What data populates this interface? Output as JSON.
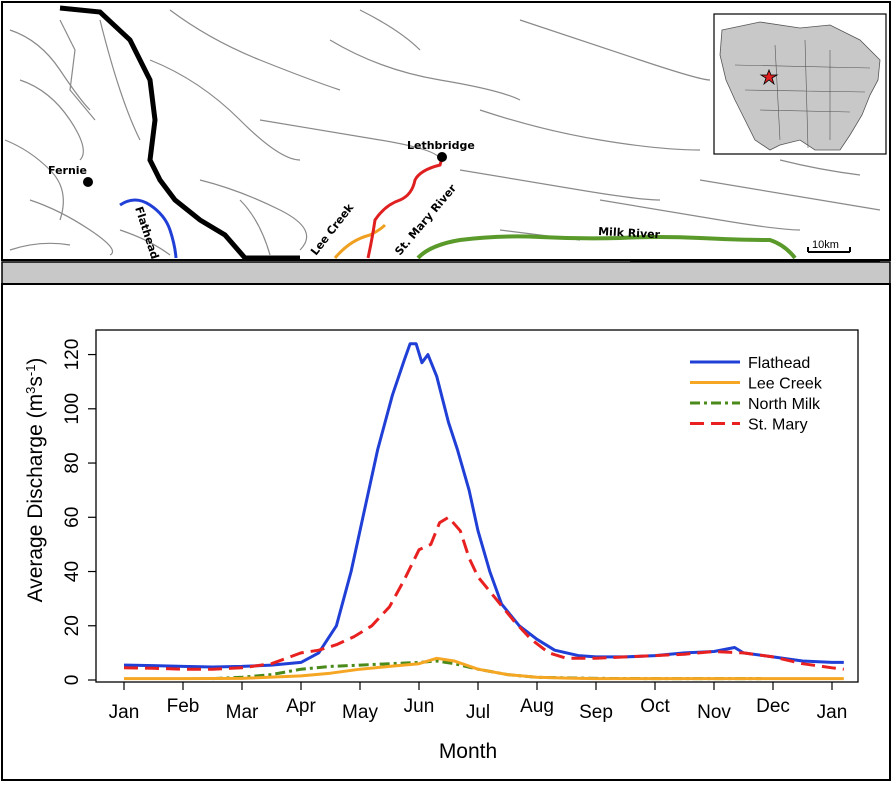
{
  "map": {
    "labels": {
      "fernie": "Fernie",
      "flathead": "Flathead",
      "lethbridge": "Lethbridge",
      "lee_creek": "Lee Creek",
      "st_mary_river": "St. Mary River",
      "milk_river": "Milk River",
      "scale": "10km"
    },
    "colors": {
      "flathead": "#1f3fd6",
      "lee_creek": "#f0a020",
      "st_mary": "#e02020",
      "milk": "#5a9a2a",
      "border": "#000000"
    }
  },
  "chart_data": {
    "type": "line",
    "title": "",
    "xlabel": "Month",
    "ylabel_main": "Average Discharge (m",
    "ylabel_sup1": "3",
    "ylabel_mid": "s",
    "ylabel_sup2": "-1",
    "ylabel_end": ")",
    "xlim": [
      0,
      12.25
    ],
    "ylim": [
      0,
      125
    ],
    "x_ticks": [
      "Jan",
      "Feb",
      "Mar",
      "Apr",
      "May",
      "Jun",
      "Jul",
      "Aug",
      "Sep",
      "Oct",
      "Nov",
      "Dec",
      "Jan"
    ],
    "y_ticks": [
      0,
      20,
      40,
      60,
      80,
      100,
      120
    ],
    "legend_position": "top-right",
    "series": [
      {
        "name": "Flathead",
        "color": "#1f3fd6",
        "dash": "solid",
        "points": [
          [
            0,
            5.5
          ],
          [
            0.5,
            5.3
          ],
          [
            1,
            5
          ],
          [
            1.5,
            4.8
          ],
          [
            2,
            5
          ],
          [
            2.5,
            5.5
          ],
          [
            3,
            6.5
          ],
          [
            3.3,
            10
          ],
          [
            3.6,
            20
          ],
          [
            3.85,
            40
          ],
          [
            4.05,
            60
          ],
          [
            4.3,
            85
          ],
          [
            4.55,
            105
          ],
          [
            4.75,
            118
          ],
          [
            4.85,
            124
          ],
          [
            4.95,
            124
          ],
          [
            5.05,
            117
          ],
          [
            5.15,
            120
          ],
          [
            5.3,
            112
          ],
          [
            5.5,
            95
          ],
          [
            5.65,
            85
          ],
          [
            5.85,
            70
          ],
          [
            6,
            55
          ],
          [
            6.2,
            40
          ],
          [
            6.4,
            28
          ],
          [
            6.7,
            20
          ],
          [
            7,
            15
          ],
          [
            7.3,
            11
          ],
          [
            7.7,
            9
          ],
          [
            8,
            8.5
          ],
          [
            8.5,
            8.5
          ],
          [
            9,
            9
          ],
          [
            9.5,
            10
          ],
          [
            10,
            10.5
          ],
          [
            10.35,
            12
          ],
          [
            10.5,
            10
          ],
          [
            11,
            8.5
          ],
          [
            11.5,
            7
          ],
          [
            12,
            6.5
          ],
          [
            12.2,
            6.5
          ]
        ]
      },
      {
        "name": "Lee Creek",
        "color": "#f5a623",
        "dash": "solid",
        "points": [
          [
            0,
            0.5
          ],
          [
            1,
            0.5
          ],
          [
            2,
            0.6
          ],
          [
            3,
            1.5
          ],
          [
            3.5,
            2.5
          ],
          [
            4,
            4
          ],
          [
            4.5,
            5
          ],
          [
            5,
            6
          ],
          [
            5.3,
            8
          ],
          [
            5.6,
            7
          ],
          [
            6,
            4
          ],
          [
            6.5,
            2
          ],
          [
            7,
            1
          ],
          [
            7.5,
            0.7
          ],
          [
            8,
            0.5
          ],
          [
            9,
            0.5
          ],
          [
            10,
            0.5
          ],
          [
            11,
            0.5
          ],
          [
            12.2,
            0.5
          ]
        ]
      },
      {
        "name": "North Milk",
        "color": "#4a8a1a",
        "dash": "dashdot",
        "points": [
          [
            1.5,
            0.5
          ],
          [
            2,
            1
          ],
          [
            2.5,
            2
          ],
          [
            3,
            4
          ],
          [
            3.5,
            5
          ],
          [
            4,
            5.5
          ],
          [
            4.5,
            6
          ],
          [
            5,
            6.5
          ],
          [
            5.3,
            7
          ],
          [
            5.6,
            6
          ],
          [
            6,
            4
          ],
          [
            6.5,
            2
          ],
          [
            7,
            1
          ],
          [
            7.5,
            0.8
          ],
          [
            8,
            0.6
          ],
          [
            9,
            0.5
          ],
          [
            10,
            0.5
          ],
          [
            10.8,
            0.5
          ]
        ]
      },
      {
        "name": "St. Mary",
        "color": "#e82020",
        "dash": "dashed",
        "points": [
          [
            0,
            4.5
          ],
          [
            0.5,
            4.3
          ],
          [
            1,
            4
          ],
          [
            1.5,
            4
          ],
          [
            2,
            4.5
          ],
          [
            2.5,
            6
          ],
          [
            3,
            10
          ],
          [
            3.3,
            11
          ],
          [
            3.6,
            13
          ],
          [
            3.9,
            16
          ],
          [
            4.2,
            20
          ],
          [
            4.5,
            27
          ],
          [
            4.75,
            37
          ],
          [
            5,
            48
          ],
          [
            5.2,
            50
          ],
          [
            5.35,
            58
          ],
          [
            5.5,
            60
          ],
          [
            5.7,
            55
          ],
          [
            5.85,
            45
          ],
          [
            6,
            38
          ],
          [
            6.3,
            30
          ],
          [
            6.6,
            22
          ],
          [
            6.9,
            15
          ],
          [
            7.2,
            10
          ],
          [
            7.5,
            8
          ],
          [
            8,
            8
          ],
          [
            8.5,
            8.5
          ],
          [
            9,
            9
          ],
          [
            9.5,
            9.5
          ],
          [
            10,
            10.5
          ],
          [
            10.5,
            10
          ],
          [
            11,
            8.5
          ],
          [
            11.5,
            6
          ],
          [
            12,
            4.5
          ],
          [
            12.2,
            4
          ]
        ]
      }
    ]
  }
}
